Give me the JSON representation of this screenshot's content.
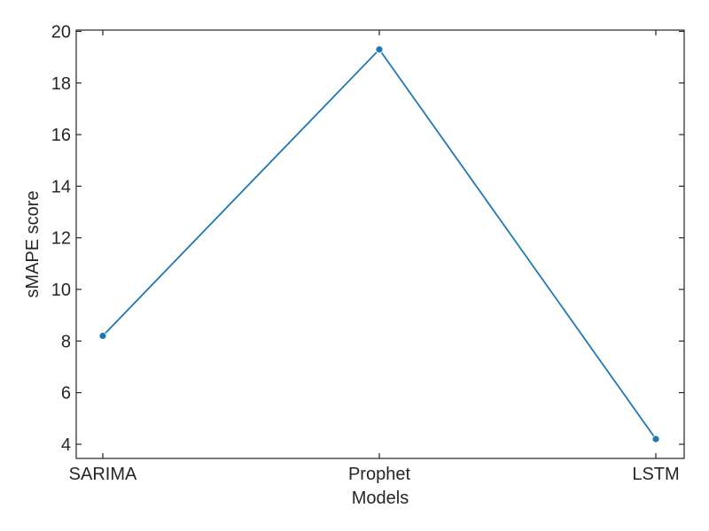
{
  "chart_data": {
    "type": "line",
    "categories": [
      "SARIMA",
      "Prophet",
      "LSTM"
    ],
    "series": [
      {
        "values": [
          8.2,
          19.3,
          4.2
        ]
      }
    ],
    "title": "",
    "xlabel": "Models",
    "ylabel": "sMAPE score",
    "ylim": [
      3.45,
      20.05
    ],
    "yticks": [
      4,
      6,
      8,
      10,
      12,
      14,
      16,
      18,
      20
    ],
    "grid": false,
    "colors": {
      "line": "#1f77b4",
      "axis": "#262626"
    }
  }
}
